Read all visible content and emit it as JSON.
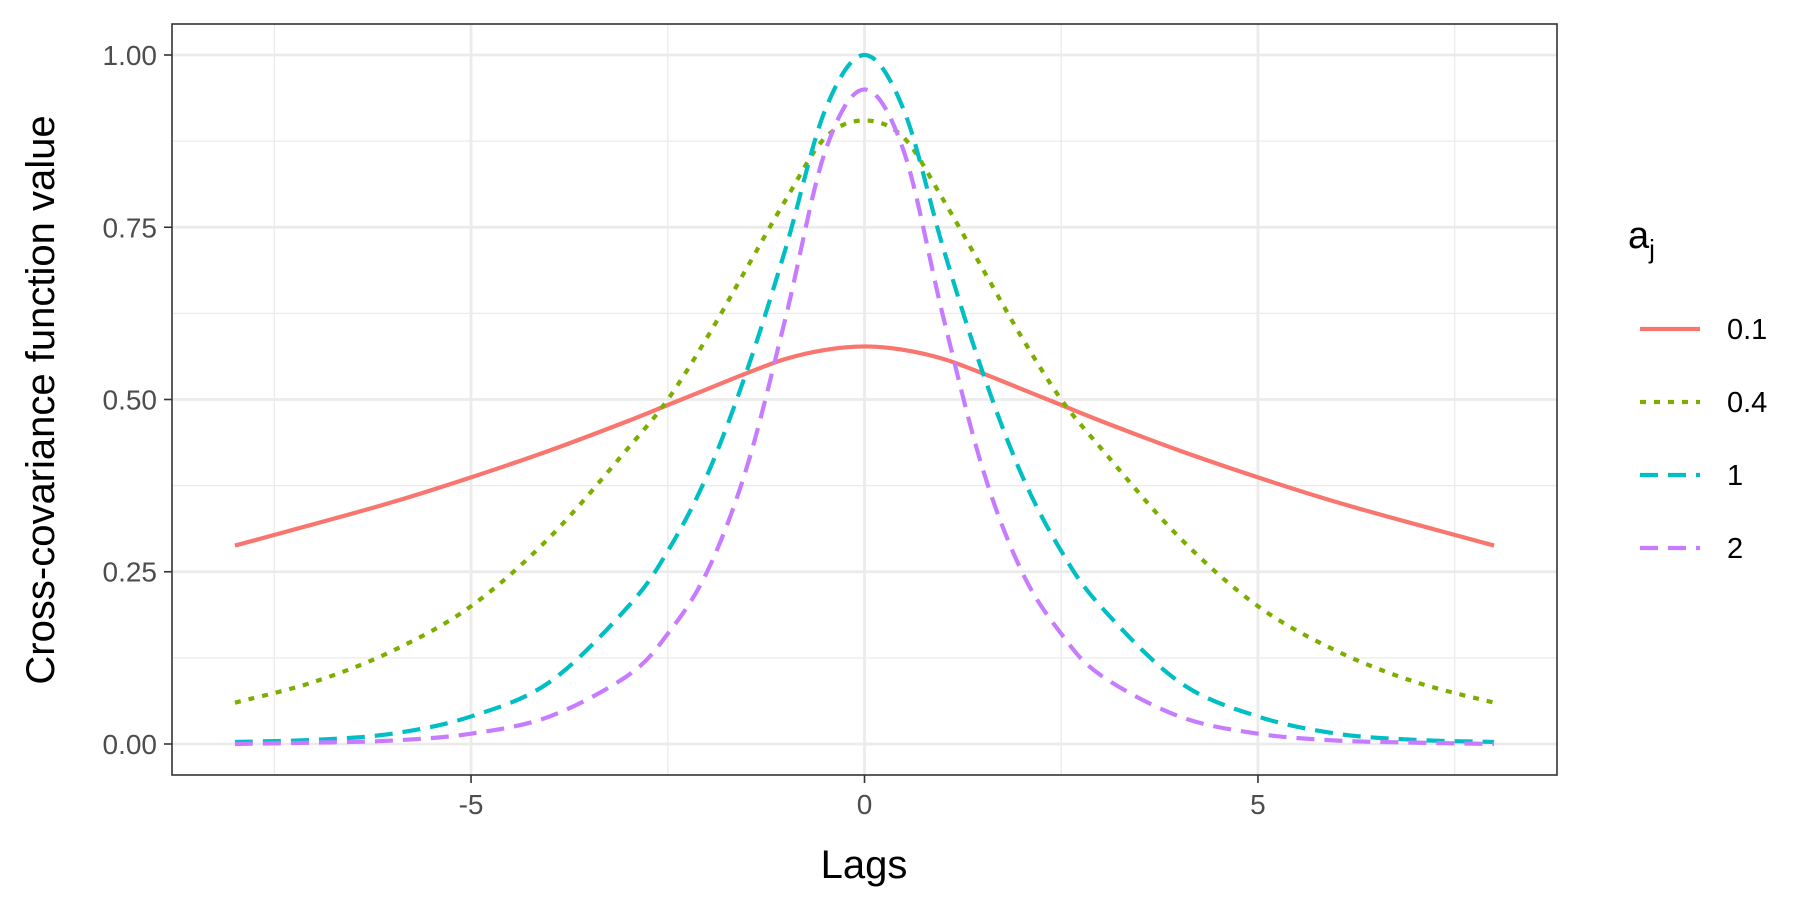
{
  "chart_data": {
    "type": "line",
    "title": "",
    "xlabel": "Lags",
    "ylabel": "Cross-covariance function value",
    "xlim": [
      -8.8,
      8.8
    ],
    "ylim": [
      -0.045,
      1.045
    ],
    "x_ticks": [
      -5,
      0,
      5
    ],
    "x_tick_labels": [
      "-5",
      "0",
      "5"
    ],
    "x_minor_ticks": [
      -7.5,
      -2.5,
      2.5,
      7.5
    ],
    "y_ticks": [
      0,
      0.25,
      0.5,
      0.75,
      1.0
    ],
    "y_tick_labels": [
      "0.00",
      "0.25",
      "0.50",
      "0.75",
      "1.00"
    ],
    "y_minor_ticks": [
      0.125,
      0.375,
      0.625,
      0.875
    ],
    "grid": true,
    "legend": {
      "title": "a",
      "title_subscript": "j",
      "placement": "right"
    },
    "x": [
      -8,
      -7,
      -6,
      -5,
      -4,
      -3,
      -2.5,
      -2,
      -1.5,
      -1,
      -0.5,
      0,
      0.5,
      1,
      1.5,
      2,
      2.5,
      3,
      4,
      5,
      6,
      7,
      8
    ],
    "series": [
      {
        "name": "0.1",
        "color": "#F8766D",
        "dash": "solid",
        "values": [
          0.288,
          0.319,
          0.351,
          0.387,
          0.426,
          0.469,
          0.492,
          0.515,
          0.538,
          0.559,
          0.572,
          0.577,
          0.572,
          0.559,
          0.538,
          0.515,
          0.492,
          0.469,
          0.426,
          0.387,
          0.351,
          0.319,
          0.288
        ]
      },
      {
        "name": "0.4",
        "color": "#7CAE00",
        "dash": "dotted",
        "values": [
          0.06,
          0.09,
          0.135,
          0.2,
          0.3,
          0.43,
          0.5,
          0.59,
          0.69,
          0.79,
          0.88,
          0.905,
          0.88,
          0.79,
          0.69,
          0.59,
          0.5,
          0.43,
          0.3,
          0.2,
          0.135,
          0.09,
          0.06
        ]
      },
      {
        "name": "1",
        "color": "#00BFC4",
        "dash": "dashed",
        "values": [
          0.003,
          0.006,
          0.015,
          0.04,
          0.09,
          0.2,
          0.28,
          0.39,
          0.54,
          0.72,
          0.92,
          1.0,
          0.92,
          0.72,
          0.54,
          0.39,
          0.28,
          0.2,
          0.09,
          0.04,
          0.015,
          0.006,
          0.003
        ]
      },
      {
        "name": "2",
        "color": "#C77CFF",
        "dash": "dashed",
        "values": [
          0.0,
          0.002,
          0.005,
          0.015,
          0.04,
          0.1,
          0.16,
          0.25,
          0.4,
          0.62,
          0.86,
          0.95,
          0.86,
          0.62,
          0.4,
          0.25,
          0.16,
          0.1,
          0.04,
          0.015,
          0.005,
          0.002,
          0.0
        ]
      }
    ]
  }
}
